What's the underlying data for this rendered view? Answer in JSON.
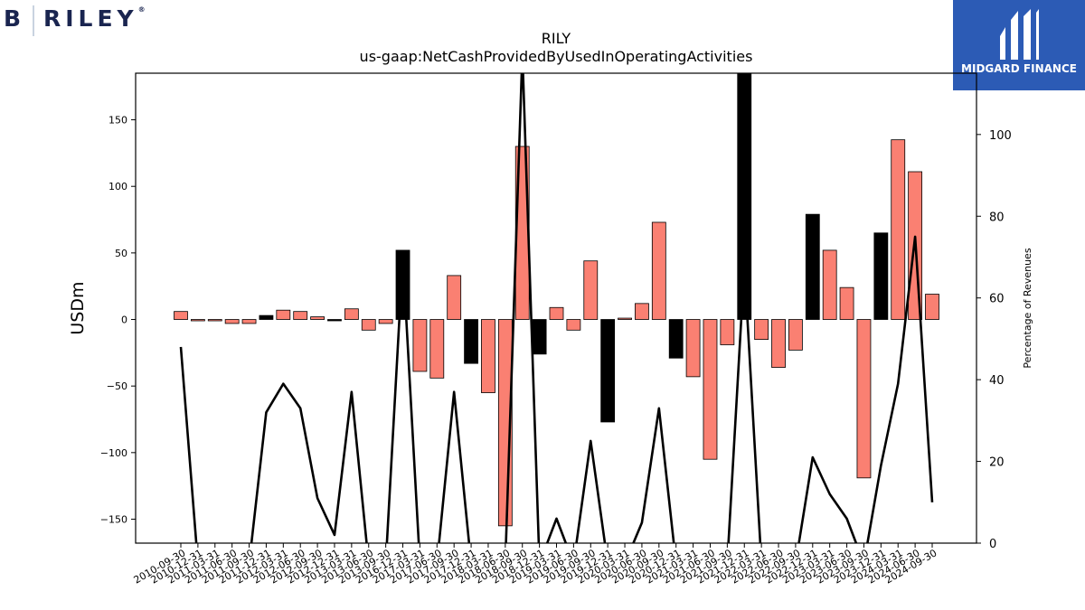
{
  "brand": {
    "left_logo_initial": "B",
    "left_logo_text": "RILEY",
    "left_logo_mark": "®",
    "right_logo_text": "MIDGARD FINANCE"
  },
  "colors": {
    "positive_bar": "#fa8072",
    "highlight_bar": "#000000",
    "line": "#000000",
    "brand_blue": "#2c5bb5",
    "brand_navy": "#1a2550"
  },
  "chart_data": {
    "type": "bar",
    "title": "RILY",
    "subtitle": "us-gaap:NetCashProvidedByUsedInOperatingActivities",
    "ylabel": "USDm",
    "y2label": "Percentage of Revenues",
    "ylim": [
      -168,
      185
    ],
    "y2lim": [
      0,
      115
    ],
    "yticks": [
      -150,
      -100,
      -50,
      0,
      50,
      100,
      150
    ],
    "y2ticks": [
      0,
      20,
      40,
      60,
      80,
      100
    ],
    "categories": [
      "2010-09-30",
      "2010-12-31",
      "2011-03-31",
      "2011-06-30",
      "2011-09-30",
      "2011-12-31",
      "2012-03-31",
      "2012-06-30",
      "2012-09-30",
      "2012-12-31",
      "2013-03-31",
      "2013-06-30",
      "2013-09-30",
      "2016-12-31",
      "2017-03-31",
      "2017-06-30",
      "2017-09-30",
      "2017-12-31",
      "2018-03-31",
      "2018-06-30",
      "2018-09-30",
      "2018-12-31",
      "2019-03-31",
      "2019-06-30",
      "2019-09-30",
      "2019-12-31",
      "2020-03-31",
      "2020-06-30",
      "2020-09-30",
      "2020-12-31",
      "2021-03-31",
      "2021-06-30",
      "2021-09-30",
      "2021-12-31",
      "2022-03-31",
      "2022-06-30",
      "2022-09-30",
      "2022-12-31",
      "2023-03-31",
      "2023-06-30",
      "2023-09-30",
      "2023-12-31",
      "2024-03-31",
      "2024-06-30",
      "2024-09-30"
    ],
    "series": [
      {
        "kind": "bar",
        "values": [
          6,
          -1,
          -1,
          -3,
          -3,
          3,
          7,
          6,
          2,
          -1,
          8,
          -8,
          -3,
          52,
          -39,
          -44,
          33,
          -33,
          -55,
          -155,
          130,
          -26,
          9,
          -8,
          44,
          -77,
          1,
          12,
          73,
          -29,
          -43,
          -105,
          -19,
          200,
          -15,
          -36,
          -23,
          79,
          52,
          24,
          -119,
          65,
          135,
          111,
          19
        ],
        "highlight": [
          false,
          false,
          false,
          false,
          false,
          true,
          false,
          false,
          false,
          true,
          false,
          false,
          false,
          true,
          false,
          false,
          false,
          true,
          false,
          false,
          false,
          true,
          false,
          false,
          false,
          true,
          false,
          false,
          false,
          true,
          false,
          false,
          false,
          true,
          false,
          false,
          false,
          true,
          false,
          false,
          false,
          true,
          false,
          false,
          false
        ]
      },
      {
        "kind": "line",
        "axis": "right",
        "values": [
          48,
          -5,
          -5,
          -5,
          -5,
          32,
          39,
          33,
          11,
          2,
          37,
          -5,
          -5,
          70,
          -5,
          -5,
          37,
          -5,
          -5,
          -5,
          120,
          -5,
          6,
          -5,
          25,
          -5,
          -5,
          5,
          33,
          -5,
          -5,
          -5,
          -5,
          68,
          -5,
          -5,
          -5,
          21,
          12,
          6,
          -5,
          19,
          39,
          75,
          10
        ]
      }
    ]
  }
}
